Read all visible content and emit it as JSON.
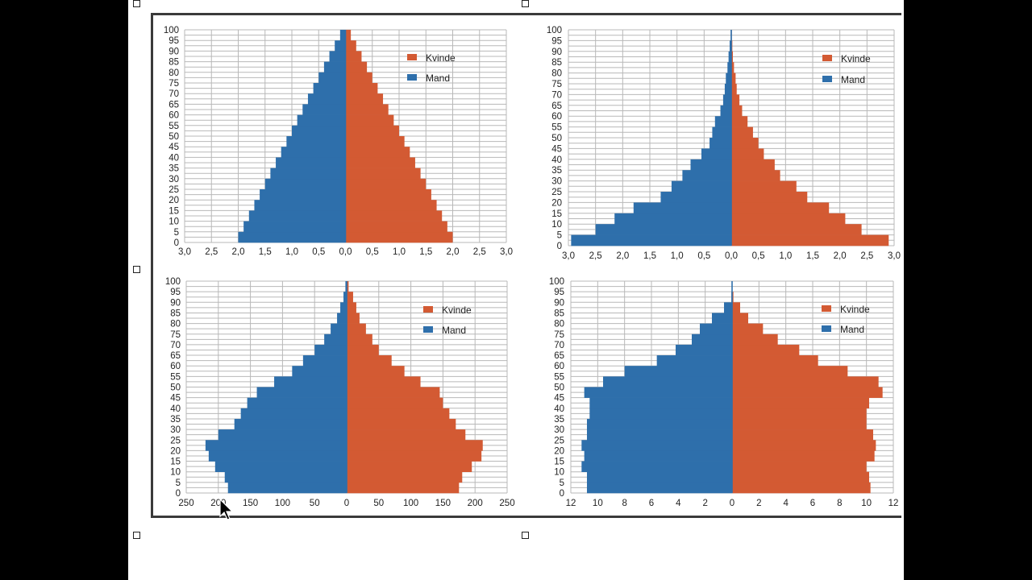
{
  "colors": {
    "female": "#d35a33",
    "male": "#2e6fab",
    "grid": "#b8b8b8",
    "midline": "#2e6fab"
  },
  "chart_data": [
    {
      "type": "bar",
      "orientation": "horizontal-population-pyramid",
      "legend": [
        "Kvinde",
        "Mand"
      ],
      "xlim": [
        -3.0,
        3.0
      ],
      "xticks": [
        -3,
        -2.5,
        -2,
        -1.5,
        -1,
        -0.5,
        0,
        0.5,
        1,
        1.5,
        2,
        2.5,
        3
      ],
      "xtick_labels": [
        "3,0",
        "2,5",
        "2,0",
        "1,5",
        "1,0",
        "0,5",
        "0,0",
        "0,5",
        "1,0",
        "1,5",
        "2,0",
        "2,5",
        "3,0"
      ],
      "yticks": [
        "0",
        "5",
        "10",
        "15",
        "20",
        "25",
        "30",
        "35",
        "40",
        "45",
        "50",
        "55",
        "60",
        "65",
        "70",
        "75",
        "80",
        "85",
        "90",
        "95",
        "100"
      ],
      "age_bands": 20,
      "series": [
        {
          "name": "Kvinde",
          "values": [
            2.0,
            1.9,
            1.8,
            1.7,
            1.6,
            1.5,
            1.4,
            1.3,
            1.2,
            1.1,
            1.0,
            0.9,
            0.8,
            0.7,
            0.6,
            0.5,
            0.4,
            0.3,
            0.2,
            0.1
          ]
        },
        {
          "name": "Mand",
          "values": [
            2.0,
            1.9,
            1.8,
            1.7,
            1.6,
            1.5,
            1.4,
            1.3,
            1.2,
            1.1,
            1.0,
            0.9,
            0.8,
            0.7,
            0.6,
            0.5,
            0.4,
            0.3,
            0.2,
            0.1
          ]
        }
      ]
    },
    {
      "type": "bar",
      "orientation": "horizontal-population-pyramid",
      "legend": [
        "Kvinde",
        "Mand"
      ],
      "xlim": [
        -3.0,
        3.0
      ],
      "xticks": [
        -3,
        -2.5,
        -2,
        -1.5,
        -1,
        -0.5,
        0,
        0.5,
        1,
        1.5,
        2,
        2.5,
        3
      ],
      "xtick_labels": [
        "3,0",
        "2,5",
        "2,0",
        "1,5",
        "1,0",
        "0,5",
        "0,0",
        "0,5",
        "1,0",
        "1,5",
        "2,0",
        "2,5",
        "3,0"
      ],
      "yticks": [
        "0",
        "5",
        "10",
        "15",
        "20",
        "25",
        "30",
        "35",
        "40",
        "45",
        "50",
        "55",
        "60",
        "65",
        "70",
        "75",
        "80",
        "85",
        "90",
        "95",
        "100"
      ],
      "age_bands": 20,
      "series": [
        {
          "name": "Kvinde",
          "values": [
            2.9,
            2.4,
            2.1,
            1.8,
            1.4,
            1.2,
            0.9,
            0.8,
            0.6,
            0.5,
            0.4,
            0.3,
            0.2,
            0.15,
            0.1,
            0.08,
            0.05,
            0.03,
            0.02,
            0.01
          ]
        },
        {
          "name": "Mand",
          "values": [
            2.95,
            2.5,
            2.15,
            1.8,
            1.3,
            1.1,
            0.9,
            0.75,
            0.55,
            0.4,
            0.35,
            0.3,
            0.2,
            0.15,
            0.12,
            0.1,
            0.07,
            0.05,
            0.03,
            0.01
          ]
        }
      ]
    },
    {
      "type": "bar",
      "orientation": "horizontal-population-pyramid",
      "legend": [
        "Kvinde",
        "Mand"
      ],
      "xlim": [
        -250,
        250
      ],
      "xticks": [
        -250,
        -200,
        -150,
        -100,
        -50,
        0,
        50,
        100,
        150,
        200,
        250
      ],
      "xtick_labels": [
        "250",
        "200",
        "150",
        "100",
        "50",
        "0",
        "50",
        "100",
        "150",
        "200",
        "250"
      ],
      "yticks": [
        "0",
        "5",
        "10",
        "15",
        "20",
        "25",
        "30",
        "35",
        "40",
        "45",
        "50",
        "55",
        "60",
        "65",
        "70",
        "75",
        "80",
        "85",
        "90",
        "95",
        "100"
      ],
      "age_bands": 20,
      "series": [
        {
          "name": "Kvinde",
          "values": [
            175,
            180,
            195,
            210,
            212,
            185,
            170,
            160,
            150,
            145,
            115,
            90,
            70,
            50,
            40,
            30,
            20,
            15,
            10,
            3
          ]
        },
        {
          "name": "Mand",
          "values": [
            185,
            190,
            205,
            215,
            220,
            200,
            175,
            165,
            155,
            140,
            113,
            85,
            68,
            50,
            35,
            25,
            15,
            10,
            5,
            2
          ]
        }
      ]
    },
    {
      "type": "bar",
      "orientation": "horizontal-population-pyramid",
      "legend": [
        "Kvinde",
        "Mand"
      ],
      "xlim": [
        -12,
        12
      ],
      "xticks": [
        -12,
        -10,
        -8,
        -6,
        -4,
        -2,
        0,
        2,
        4,
        6,
        8,
        10,
        12
      ],
      "xtick_labels": [
        "12",
        "10",
        "8",
        "6",
        "4",
        "2",
        "0",
        "2",
        "4",
        "6",
        "8",
        "10",
        "12"
      ],
      "yticks": [
        "0",
        "5",
        "10",
        "15",
        "20",
        "25",
        "30",
        "35",
        "40",
        "45",
        "50",
        "55",
        "60",
        "65",
        "70",
        "75",
        "80",
        "85",
        "90",
        "95",
        "100"
      ],
      "age_bands": 20,
      "series": [
        {
          "name": "Kvinde",
          "values": [
            10.3,
            10.2,
            10.0,
            10.6,
            10.7,
            10.5,
            10.0,
            10.0,
            10.2,
            11.2,
            10.9,
            8.6,
            6.4,
            5.0,
            3.4,
            2.3,
            1.2,
            0.6,
            0.1,
            0.0
          ]
        },
        {
          "name": "Mand",
          "values": [
            10.8,
            10.8,
            11.2,
            11.0,
            11.2,
            10.8,
            10.8,
            10.6,
            10.6,
            11.0,
            9.6,
            8.0,
            5.6,
            4.2,
            3.0,
            2.4,
            1.5,
            0.6,
            0.05,
            0.0
          ]
        }
      ]
    }
  ]
}
